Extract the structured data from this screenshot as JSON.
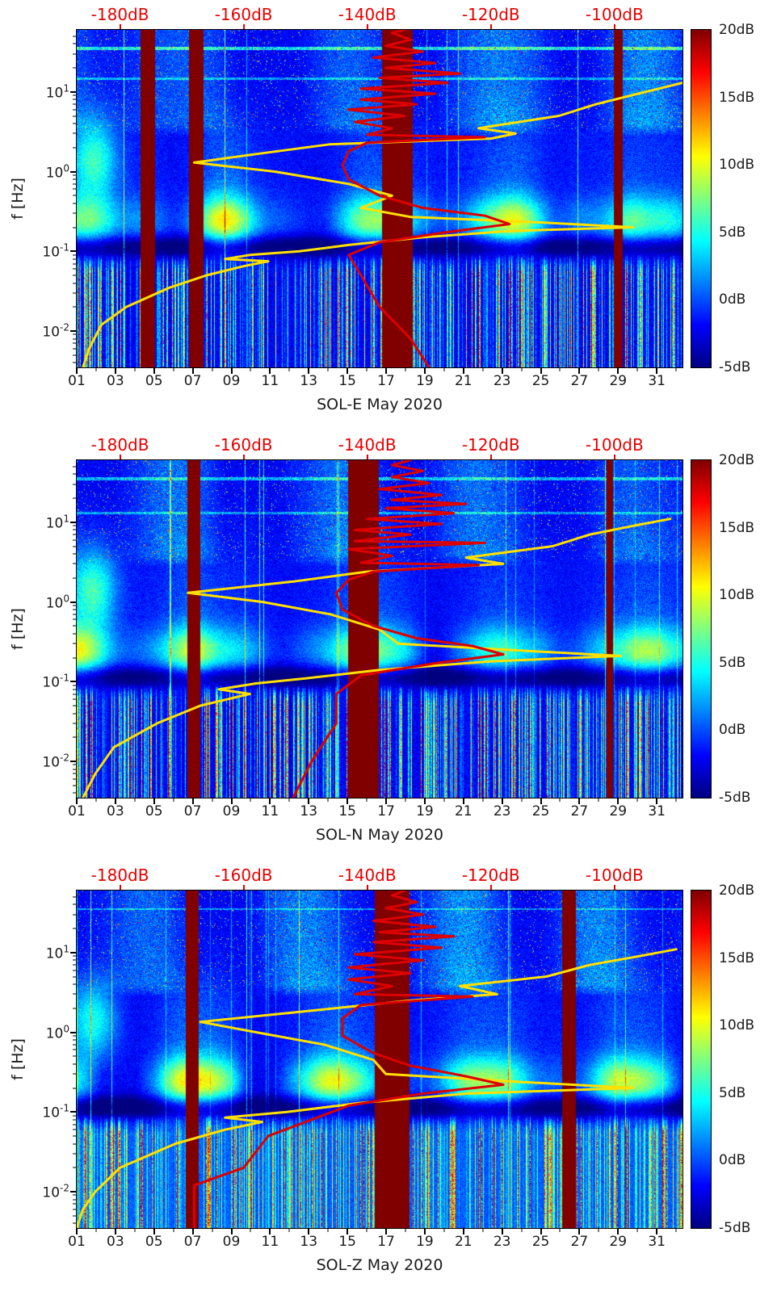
{
  "styles": {
    "background": "#ffffff",
    "axis_text_color": "#1a1a1a",
    "top_axis_color": "#e80000",
    "yellow_curve_color": "#ffe000",
    "red_curve_color": "#dd0000",
    "frame_color": "#000000"
  },
  "top_axis": {
    "labels": [
      {
        "text": "-180dB",
        "db": -180
      },
      {
        "text": "-160dB",
        "db": -160
      },
      {
        "text": "-140dB",
        "db": -140
      },
      {
        "text": "-120dB",
        "db": -120
      },
      {
        "text": "-100dB",
        "db": -100
      }
    ],
    "range_db": [
      -187,
      -89
    ]
  },
  "y_axis": {
    "label": "f [Hz]",
    "ticks": [
      {
        "label": "10^1",
        "logf": 1
      },
      {
        "label": "10^0",
        "logf": 0
      },
      {
        "label": "10^-1",
        "logf": -1
      },
      {
        "label": "10^-2",
        "logf": -2
      }
    ],
    "log_range": {
      "top": 1.778,
      "bottom": -2.456
    }
  },
  "x_axis": {
    "labels": [
      "01",
      "03",
      "05",
      "07",
      "09",
      "11",
      "13",
      "15",
      "17",
      "19",
      "21",
      "23",
      "25",
      "27",
      "29",
      "31"
    ],
    "days": [
      1,
      3,
      5,
      7,
      9,
      11,
      13,
      15,
      17,
      19,
      21,
      23,
      25,
      27,
      29,
      31
    ],
    "day_range": [
      1,
      32.33
    ]
  },
  "colorbar": {
    "colormap": "jet",
    "range": [
      -5,
      20
    ],
    "ticks": [
      {
        "text": "20dB",
        "value": 20
      },
      {
        "text": "15dB",
        "value": 15
      },
      {
        "text": "10dB",
        "value": 10
      },
      {
        "text": "5dB",
        "value": 5
      },
      {
        "text": "0dB",
        "value": 0
      },
      {
        "text": "-5dB",
        "value": -5
      }
    ]
  },
  "chart_data": [
    {
      "type": "heatmap",
      "name": "SOL-E",
      "xlabel": "SOL-E May 2020",
      "ylabel": "f [Hz]",
      "x_unit": "day of May 2020",
      "y_unit": "Hz",
      "value_unit": "dB (relative spectral power, -5 to 20)",
      "colormap": "jet",
      "color_range_db": [
        -5,
        20
      ],
      "y_range_hz": [
        0.0035,
        60
      ],
      "top_axis_db_ticks": [
        -180,
        -160,
        -140,
        -120,
        -100
      ],
      "gap_bands_days": [
        [
          4.3,
          5.05
        ],
        [
          6.8,
          7.55
        ],
        [
          16.75,
          18.35
        ],
        [
          28.75,
          29.2
        ]
      ],
      "overlays": {
        "yellow_curve": [
          [
            0.0035,
            -186
          ],
          [
            0.006,
            -185
          ],
          [
            0.012,
            -183
          ],
          [
            0.02,
            -179
          ],
          [
            0.035,
            -172
          ],
          [
            0.05,
            -166
          ],
          [
            0.065,
            -160
          ],
          [
            0.075,
            -156
          ],
          [
            0.08,
            -163
          ],
          [
            0.09,
            -159
          ],
          [
            0.1,
            -151
          ],
          [
            0.12,
            -143
          ],
          [
            0.15,
            -131
          ],
          [
            0.18,
            -117
          ],
          [
            0.2,
            -97
          ],
          [
            0.23,
            -112
          ],
          [
            0.27,
            -133
          ],
          [
            0.35,
            -141
          ],
          [
            0.5,
            -136
          ],
          [
            0.7,
            -143
          ],
          [
            1.0,
            -155
          ],
          [
            1.3,
            -168
          ],
          [
            1.7,
            -157
          ],
          [
            2.2,
            -146
          ],
          [
            2.6,
            -120
          ],
          [
            3.0,
            -116
          ],
          [
            3.5,
            -122
          ],
          [
            5,
            -109
          ],
          [
            7,
            -103
          ],
          [
            10,
            -95
          ],
          [
            13,
            -89
          ]
        ],
        "red_curve": [
          [
            0.0035,
            -130
          ],
          [
            0.008,
            -133
          ],
          [
            0.02,
            -138
          ],
          [
            0.05,
            -141
          ],
          [
            0.09,
            -143
          ],
          [
            0.13,
            -138
          ],
          [
            0.17,
            -128
          ],
          [
            0.22,
            -117
          ],
          [
            0.28,
            -121
          ],
          [
            0.35,
            -131
          ],
          [
            0.5,
            -138
          ],
          [
            0.8,
            -143
          ],
          [
            1.2,
            -144
          ],
          [
            1.8,
            -143
          ],
          [
            2.3,
            -140
          ],
          [
            2.7,
            -121
          ],
          [
            2.9,
            -140
          ],
          [
            3.5,
            -136
          ],
          [
            4.2,
            -142
          ],
          [
            5,
            -134
          ],
          [
            6,
            -143
          ],
          [
            7,
            -132
          ],
          [
            8,
            -141
          ],
          [
            9.5,
            -129
          ],
          [
            11,
            -141
          ],
          [
            13,
            -127
          ],
          [
            15,
            -138
          ],
          [
            17,
            -125
          ],
          [
            20,
            -137
          ],
          [
            23,
            -129
          ],
          [
            27,
            -139
          ],
          [
            32,
            -131
          ],
          [
            38,
            -137
          ],
          [
            45,
            -133
          ],
          [
            55,
            -136
          ],
          [
            60,
            -134
          ]
        ]
      },
      "render_hints": {
        "seed": 7,
        "phase": 0.3,
        "low_base": 0,
        "lines": [
          {
            "pos": 1.55,
            "w": 0.02,
            "amp": 8
          },
          {
            "pos": 1.17,
            "w": 0.015,
            "amp": 5
          }
        ]
      }
    },
    {
      "type": "heatmap",
      "name": "SOL-N",
      "xlabel": "SOL-N May 2020",
      "ylabel": "f [Hz]",
      "x_unit": "day of May 2020",
      "y_unit": "Hz",
      "value_unit": "dB (relative spectral power, -5 to 20)",
      "colormap": "jet",
      "color_range_db": [
        -5,
        20
      ],
      "y_range_hz": [
        0.0035,
        60
      ],
      "top_axis_db_ticks": [
        -180,
        -160,
        -140,
        -120,
        -100
      ],
      "gap_bands_days": [
        [
          6.7,
          7.35
        ],
        [
          15.0,
          16.6
        ],
        [
          28.4,
          28.7
        ]
      ],
      "overlays": {
        "yellow_curve": [
          [
            0.0035,
            -186
          ],
          [
            0.007,
            -184
          ],
          [
            0.015,
            -181
          ],
          [
            0.03,
            -174
          ],
          [
            0.05,
            -167
          ],
          [
            0.07,
            -159
          ],
          [
            0.08,
            -164
          ],
          [
            0.095,
            -158
          ],
          [
            0.11,
            -150
          ],
          [
            0.14,
            -138
          ],
          [
            0.18,
            -120
          ],
          [
            0.21,
            -99
          ],
          [
            0.25,
            -117
          ],
          [
            0.3,
            -135
          ],
          [
            0.45,
            -138
          ],
          [
            0.7,
            -146
          ],
          [
            1.0,
            -157
          ],
          [
            1.3,
            -169
          ],
          [
            1.8,
            -152
          ],
          [
            2.4,
            -140
          ],
          [
            3.0,
            -118
          ],
          [
            3.6,
            -124
          ],
          [
            5,
            -110
          ],
          [
            7,
            -104
          ],
          [
            9,
            -97
          ],
          [
            11,
            -91
          ]
        ],
        "red_curve": [
          [
            0.0035,
            -152
          ],
          [
            0.01,
            -149
          ],
          [
            0.03,
            -145
          ],
          [
            0.07,
            -145
          ],
          [
            0.12,
            -141
          ],
          [
            0.17,
            -129
          ],
          [
            0.22,
            -118
          ],
          [
            0.28,
            -123
          ],
          [
            0.35,
            -132
          ],
          [
            0.5,
            -139
          ],
          [
            0.8,
            -144
          ],
          [
            1.3,
            -145
          ],
          [
            1.9,
            -143
          ],
          [
            2.4,
            -139
          ],
          [
            2.9,
            -122
          ],
          [
            3.1,
            -141
          ],
          [
            3.8,
            -136
          ],
          [
            4.6,
            -143
          ],
          [
            5.5,
            -121
          ],
          [
            5.8,
            -142
          ],
          [
            7,
            -133
          ],
          [
            8,
            -142
          ],
          [
            9.5,
            -128
          ],
          [
            11,
            -140
          ],
          [
            13,
            -126
          ],
          [
            15,
            -137
          ],
          [
            17,
            -124
          ],
          [
            19,
            -136
          ],
          [
            22,
            -128
          ],
          [
            26,
            -138
          ],
          [
            31,
            -130
          ],
          [
            37,
            -136
          ],
          [
            44,
            -131
          ],
          [
            52,
            -136
          ],
          [
            60,
            -133
          ]
        ]
      },
      "render_hints": {
        "seed": 19,
        "phase": 1.1,
        "low_base": 0,
        "lines": [
          {
            "pos": 1.55,
            "w": 0.018,
            "amp": 6
          },
          {
            "pos": 1.12,
            "w": 0.015,
            "amp": 5
          }
        ]
      }
    },
    {
      "type": "heatmap",
      "name": "SOL-Z",
      "xlabel": "SOL-Z May 2020",
      "ylabel": "f [Hz]",
      "x_unit": "day of May 2020",
      "y_unit": "Hz",
      "value_unit": "dB (relative spectral power, -5 to 20)",
      "colormap": "jet",
      "color_range_db": [
        -5,
        20
      ],
      "y_range_hz": [
        0.0035,
        60
      ],
      "top_axis_db_ticks": [
        -180,
        -160,
        -140,
        -120,
        -100
      ],
      "gap_bands_days": [
        [
          6.6,
          7.3
        ],
        [
          16.4,
          18.2
        ],
        [
          26.1,
          26.8
        ]
      ],
      "overlays": {
        "yellow_curve": [
          [
            0.0035,
            -187
          ],
          [
            0.006,
            -186
          ],
          [
            0.01,
            -184
          ],
          [
            0.02,
            -180
          ],
          [
            0.04,
            -171
          ],
          [
            0.06,
            -163
          ],
          [
            0.075,
            -157
          ],
          [
            0.085,
            -163
          ],
          [
            0.1,
            -153
          ],
          [
            0.13,
            -141
          ],
          [
            0.17,
            -124
          ],
          [
            0.2,
            -97
          ],
          [
            0.24,
            -116
          ],
          [
            0.3,
            -137
          ],
          [
            0.45,
            -139
          ],
          [
            0.7,
            -147
          ],
          [
            1.0,
            -158
          ],
          [
            1.35,
            -167
          ],
          [
            1.9,
            -148
          ],
          [
            2.5,
            -133
          ],
          [
            3.0,
            -119
          ],
          [
            3.8,
            -125
          ],
          [
            5,
            -111
          ],
          [
            7,
            -104
          ],
          [
            9,
            -96
          ],
          [
            11,
            -90
          ]
        ],
        "red_curve": [
          [
            0.0035,
            -168
          ],
          [
            0.012,
            -168
          ],
          [
            0.02,
            -160
          ],
          [
            0.05,
            -156
          ],
          [
            0.08,
            -149
          ],
          [
            0.12,
            -143
          ],
          [
            0.17,
            -131
          ],
          [
            0.22,
            -118
          ],
          [
            0.28,
            -124
          ],
          [
            0.38,
            -133
          ],
          [
            0.55,
            -139
          ],
          [
            0.9,
            -144
          ],
          [
            1.5,
            -144
          ],
          [
            2.2,
            -141
          ],
          [
            2.8,
            -123
          ],
          [
            3.0,
            -142
          ],
          [
            3.8,
            -136
          ],
          [
            4.6,
            -143
          ],
          [
            5.5,
            -133
          ],
          [
            6.5,
            -143
          ],
          [
            8,
            -131
          ],
          [
            9.5,
            -142
          ],
          [
            11.5,
            -128
          ],
          [
            13.5,
            -139
          ],
          [
            16,
            -126
          ],
          [
            18,
            -138
          ],
          [
            21,
            -129
          ],
          [
            25,
            -139
          ],
          [
            30,
            -131
          ],
          [
            36,
            -137
          ],
          [
            43,
            -132
          ],
          [
            52,
            -136
          ],
          [
            60,
            -134
          ]
        ]
      },
      "render_hints": {
        "seed": 31,
        "phase": 2.0,
        "low_base": 2.5,
        "lines": [
          {
            "pos": 1.55,
            "w": 0.015,
            "amp": 5
          }
        ]
      }
    }
  ]
}
